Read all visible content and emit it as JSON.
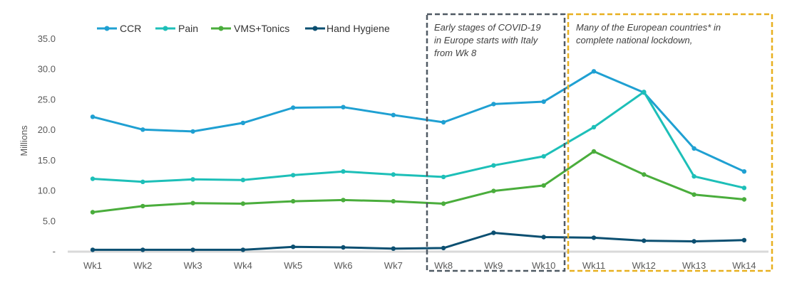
{
  "chart_data": {
    "type": "line",
    "title": "",
    "xlabel": "",
    "ylabel": "Millions",
    "ylim": [
      0,
      35
    ],
    "categories": [
      "Wk1",
      "Wk2",
      "Wk3",
      "Wk4",
      "Wk5",
      "Wk6",
      "Wk7",
      "Wk8",
      "Wk9",
      "Wk10",
      "Wk11",
      "Wk12",
      "Wk13",
      "Wk14"
    ],
    "yticks": [
      {
        "value": 35,
        "label": "35.0"
      },
      {
        "value": 30,
        "label": "30.0"
      },
      {
        "value": 25,
        "label": "25.0"
      },
      {
        "value": 20,
        "label": "20.0"
      },
      {
        "value": 15,
        "label": "15.0"
      },
      {
        "value": 10,
        "label": "10.0"
      },
      {
        "value": 5,
        "label": "5.0"
      },
      {
        "value": 0,
        "label": "-"
      }
    ],
    "legend_position": "top-left",
    "series": [
      {
        "name": "CCR",
        "color": "#1fa0d2",
        "values": [
          22.2,
          20.1,
          19.8,
          21.2,
          23.7,
          23.8,
          22.5,
          21.3,
          24.3,
          24.7,
          29.7,
          26.2,
          17.0,
          13.2
        ]
      },
      {
        "name": "Pain",
        "color": "#1dbfb8",
        "values": [
          12.0,
          11.5,
          11.9,
          11.8,
          12.6,
          13.2,
          12.7,
          12.3,
          14.2,
          15.7,
          20.5,
          26.3,
          12.4,
          10.5
        ]
      },
      {
        "name": "VMS+Tonics",
        "color": "#4aad3c",
        "values": [
          6.5,
          7.5,
          8.0,
          7.9,
          8.3,
          8.5,
          8.3,
          7.9,
          10.0,
          10.9,
          16.5,
          12.7,
          9.4,
          8.6
        ]
      },
      {
        "name": "Hand Hygiene",
        "color": "#0b4f71",
        "values": [
          0.3,
          0.3,
          0.3,
          0.3,
          0.8,
          0.7,
          0.5,
          0.6,
          3.1,
          2.4,
          2.3,
          1.8,
          1.7,
          1.9
        ]
      }
    ],
    "annotations": [
      {
        "id": "covid-early",
        "color": "#505a64",
        "lines": [
          "Early stages of COVID-19",
          "in Europe starts with Italy",
          "from Wk 8"
        ]
      },
      {
        "id": "lockdown",
        "color": "#e8b020",
        "lines": [
          "Many of the European countries*  in",
          "complete national lockdown,"
        ]
      }
    ]
  }
}
